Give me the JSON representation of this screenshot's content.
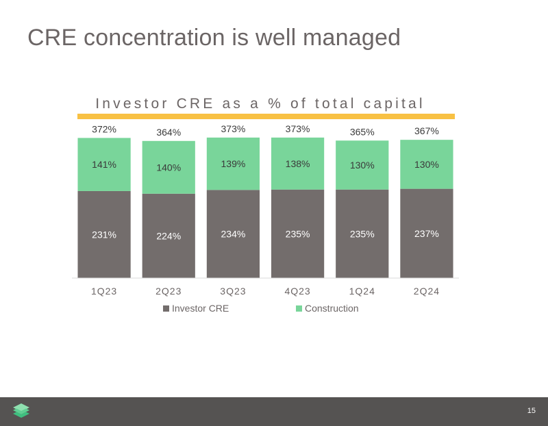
{
  "slide": {
    "title": "CRE concentration is well managed",
    "page_number": "15"
  },
  "colors": {
    "investor_cre": "#736D6C",
    "construction": "#79D59A",
    "accent_bar": "#F8C144",
    "footer": "#555352"
  },
  "chart_data": {
    "type": "bar",
    "stacked": true,
    "title": "Investor CRE as a % of total capital",
    "categories": [
      "1Q23",
      "2Q23",
      "3Q23",
      "4Q23",
      "1Q24",
      "2Q24"
    ],
    "series": [
      {
        "name": "Investor CRE",
        "values": [
          231,
          224,
          234,
          235,
          235,
          237
        ],
        "labels": [
          "231%",
          "224%",
          "234%",
          "235%",
          "235%",
          "237%"
        ]
      },
      {
        "name": "Construction",
        "values": [
          141,
          140,
          139,
          138,
          130,
          130
        ],
        "labels": [
          "141%",
          "140%",
          "139%",
          "138%",
          "130%",
          "130%"
        ]
      }
    ],
    "totals": [
      "372%",
      "364%",
      "373%",
      "373%",
      "365%",
      "367%"
    ],
    "ylim": [
      0,
      400
    ],
    "legend": "bottom",
    "grid": false
  }
}
